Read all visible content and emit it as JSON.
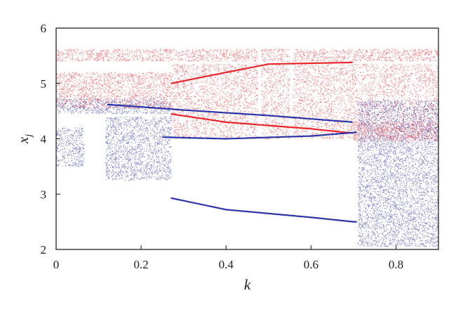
{
  "chart_data": {
    "type": "scatter",
    "title": "",
    "xlabel": "k",
    "ylabel_main": "x",
    "ylabel_sub": "j",
    "xlim": [
      0,
      0.9
    ],
    "ylim": [
      2,
      6
    ],
    "x_ticks": [
      0,
      0.2,
      0.4,
      0.6,
      0.8
    ],
    "x_tick_labels": [
      "0",
      "0.2",
      "0.4",
      "0.6",
      "0.8"
    ],
    "y_ticks": [
      2,
      3,
      4,
      5,
      6
    ],
    "y_tick_labels": [
      "2",
      "3",
      "4",
      "5",
      "6"
    ],
    "grid": false,
    "legend": "none",
    "series": [
      {
        "color": "#e8262b",
        "regions": [
          {
            "x": [
              0.0,
              0.9
            ],
            "y": [
              5.4,
              5.62
            ]
          },
          {
            "x": [
              0.0,
              0.27
            ],
            "y": [
              4.55,
              5.2
            ]
          },
          {
            "x": [
              0.27,
              0.9
            ],
            "y": [
              4.0,
              5.35
            ]
          },
          {
            "x": [
              0.7,
              0.9
            ],
            "y": [
              3.95,
              4.3
            ]
          }
        ],
        "curves": [
          {
            "name_hint": "upper-branch-edge",
            "points": [
              [
                0.27,
                5.0
              ],
              [
                0.4,
                5.2
              ],
              [
                0.5,
                5.35
              ],
              [
                0.7,
                5.38
              ]
            ]
          },
          {
            "name_hint": "lower-branch-edge",
            "points": [
              [
                0.27,
                4.45
              ],
              [
                0.4,
                4.3
              ],
              [
                0.6,
                4.18
              ],
              [
                0.7,
                4.1
              ]
            ]
          }
        ],
        "gaps_x": [
          0.478,
          0.553
        ]
      },
      {
        "color": "#2b33a8",
        "regions": [
          {
            "x": [
              0.0,
              0.065
            ],
            "y": [
              3.5,
              4.2
            ]
          },
          {
            "x": [
              0.115,
              0.27
            ],
            "y": [
              3.25,
              4.4
            ]
          },
          {
            "x": [
              0.0,
              0.27
            ],
            "y": [
              4.45,
              4.72
            ]
          },
          {
            "x": [
              0.71,
              0.9
            ],
            "y": [
              2.05,
              4.7
            ]
          }
        ],
        "curves": [
          {
            "name_hint": "upper-line",
            "points": [
              [
                0.12,
                4.62
              ],
              [
                0.3,
                4.52
              ],
              [
                0.5,
                4.42
              ],
              [
                0.7,
                4.3
              ]
            ]
          },
          {
            "name_hint": "middle-line",
            "points": [
              [
                0.25,
                4.03
              ],
              [
                0.4,
                4.0
              ],
              [
                0.6,
                4.05
              ],
              [
                0.71,
                4.12
              ]
            ]
          },
          {
            "name_hint": "lower-line",
            "points": [
              [
                0.27,
                2.93
              ],
              [
                0.4,
                2.72
              ],
              [
                0.6,
                2.58
              ],
              [
                0.7,
                2.5
              ],
              [
                0.71,
                2.5
              ]
            ]
          }
        ]
      }
    ]
  }
}
